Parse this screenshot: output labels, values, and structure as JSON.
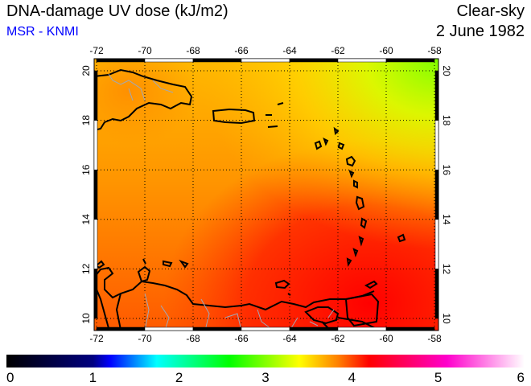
{
  "header": {
    "title": "DNA-damage UV dose (kJ/m2)",
    "source": "MSR - KNMI",
    "condition": "Clear-sky",
    "date": "2 June 1982"
  },
  "map": {
    "lon_ticks": [
      "-72",
      "-70",
      "-68",
      "-66",
      "-64",
      "-62",
      "-60",
      "-58"
    ],
    "lat_ticks": [
      "10",
      "12",
      "14",
      "16",
      "18",
      "20"
    ],
    "lon_range": [
      -72,
      -58
    ],
    "lat_range": [
      9.5,
      20.5
    ],
    "field_summary": {
      "typical": 3.9,
      "min_region": "northeast ~3.0",
      "max_region": "southeast ~4.4"
    }
  },
  "colorbar": {
    "labels": [
      "0",
      "1",
      "2",
      "3",
      "4",
      "5",
      "6"
    ],
    "range": [
      0,
      6
    ],
    "colors": [
      "#000000",
      "#0000ff",
      "#00ffff",
      "#00ff00",
      "#ffff00",
      "#ff0000",
      "#ff00cc",
      "#ffffff"
    ]
  }
}
